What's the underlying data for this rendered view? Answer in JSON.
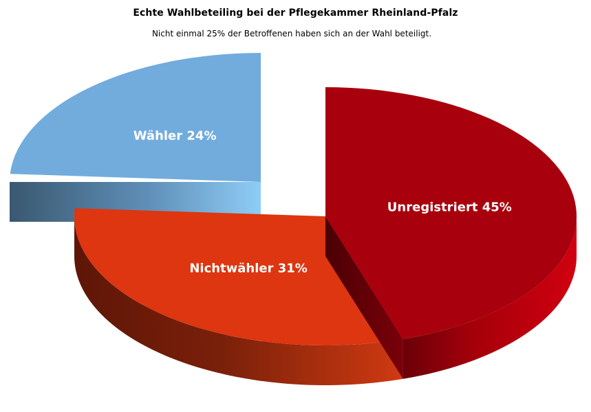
{
  "chart_data": {
    "type": "pie",
    "title": "Echte Wahlbeteiling bei der Pflegekammer Rheinland-Pfalz",
    "subtitle": "Nicht einmal 25% der Betroffenen haben sich an der Wahl beteiligt.",
    "exploded": [
      "Wähler"
    ],
    "three_d": true,
    "slices": [
      {
        "category": "Unregistriert",
        "value": 45,
        "label": "Unregistriert 45%",
        "color": "#a8000c"
      },
      {
        "category": "Nichtwähler",
        "value": 31,
        "label": "Nichtwähler 31%",
        "color": "#dd3610"
      },
      {
        "category": "Wähler",
        "value": 24,
        "label": "Wähler 24%",
        "color": "#72acdd"
      }
    ]
  }
}
